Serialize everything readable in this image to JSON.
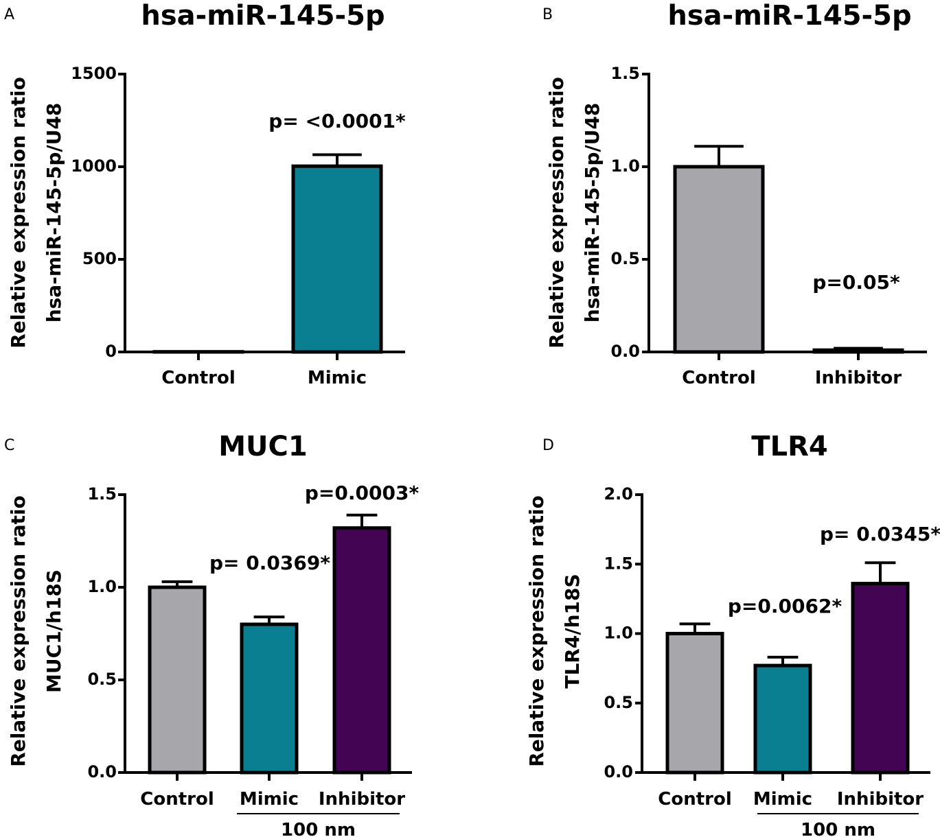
{
  "colors": {
    "control": "#a6a6ab",
    "mimic": "#0a7f92",
    "inhibitor": "#430553",
    "axis": "#000000"
  },
  "chart_data": [
    {
      "panel": "A",
      "type": "bar",
      "title": "hsa-miR-145-5p",
      "ylabel": [
        "Relative expression ratio",
        "hsa-miR-145-5p/U48"
      ],
      "categories": [
        "Control",
        "Mimic"
      ],
      "values": [
        1,
        1003
      ],
      "errors": [
        0,
        62
      ],
      "ylim": [
        0,
        1500
      ],
      "yticks": [
        0,
        500,
        1000,
        1500
      ],
      "tick_labels": [
        "0",
        "500",
        "1000",
        "1500"
      ],
      "series_colors": [
        "control",
        "mimic"
      ],
      "annotations": [
        {
          "category": "Mimic",
          "text": "p= <0.0001*"
        }
      ],
      "group_label": null
    },
    {
      "panel": "B",
      "type": "bar",
      "title": "hsa-miR-145-5p",
      "ylabel": [
        "Relative expression ratio",
        "hsa-miR-145-5p/U48"
      ],
      "categories": [
        "Control",
        "Inhibitor"
      ],
      "values": [
        1.0,
        0.01
      ],
      "errors": [
        0.11,
        0.01
      ],
      "ylim": [
        0,
        1.5
      ],
      "yticks": [
        0,
        0.5,
        1.0,
        1.5
      ],
      "tick_labels": [
        "0.0",
        "0.5",
        "1.0",
        "1.5"
      ],
      "series_colors": [
        "control",
        "inhibitor"
      ],
      "annotations": [
        {
          "category": "Inhibitor",
          "text": "p=0.05*"
        }
      ],
      "group_label": null
    },
    {
      "panel": "C",
      "type": "bar",
      "title": "MUC1",
      "ylabel": [
        "Relative expression ratio",
        "MUC1/h18S"
      ],
      "categories": [
        "Control",
        "Mimic",
        "Inhibitor"
      ],
      "values": [
        1.0,
        0.8,
        1.32
      ],
      "errors": [
        0.03,
        0.04,
        0.07
      ],
      "ylim": [
        0,
        1.5
      ],
      "yticks": [
        0,
        0.5,
        1.0,
        1.5
      ],
      "tick_labels": [
        "0.0",
        "0.5",
        "1.0",
        "1.5"
      ],
      "series_colors": [
        "control",
        "mimic",
        "inhibitor"
      ],
      "annotations": [
        {
          "category": "Mimic",
          "text": "p= 0.0369*"
        },
        {
          "category": "Inhibitor",
          "text": "p=0.0003*"
        }
      ],
      "group_label": "100 nm"
    },
    {
      "panel": "D",
      "type": "bar",
      "title": "TLR4",
      "ylabel": [
        "Relative expression ratio",
        "TLR4/h18S"
      ],
      "categories": [
        "Control",
        "Mimic",
        "Inhibitor"
      ],
      "values": [
        1.0,
        0.77,
        1.36
      ],
      "errors": [
        0.07,
        0.06,
        0.15
      ],
      "ylim": [
        0,
        2.0
      ],
      "yticks": [
        0,
        0.5,
        1.0,
        1.5,
        2.0
      ],
      "tick_labels": [
        "0.0",
        "0.5",
        "1.0",
        "1.5",
        "2.0"
      ],
      "series_colors": [
        "control",
        "mimic",
        "inhibitor"
      ],
      "annotations": [
        {
          "category": "Mimic",
          "text": "p=0.0062*"
        },
        {
          "category": "Inhibitor",
          "text": "p= 0.0345*"
        }
      ],
      "group_label": "100 nm"
    }
  ]
}
